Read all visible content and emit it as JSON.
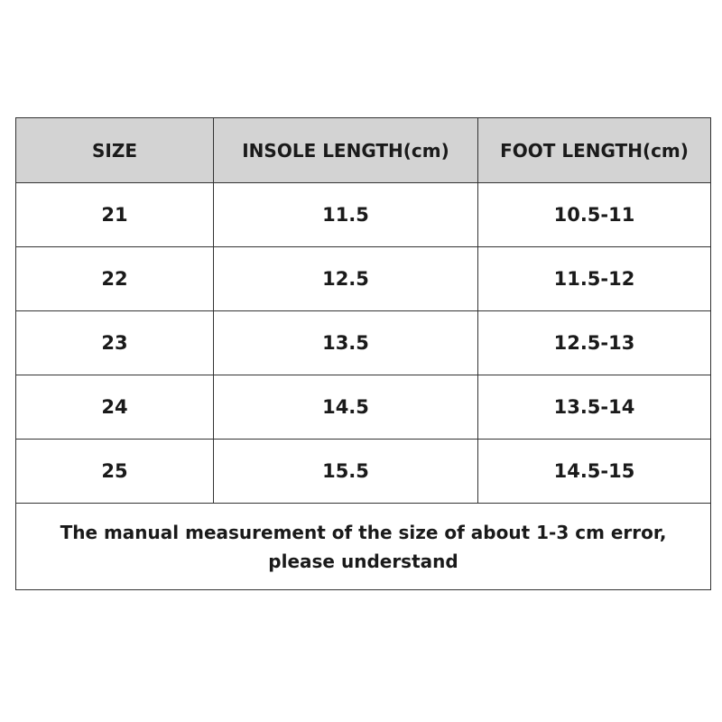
{
  "table": {
    "header": [
      "SIZE",
      "INSOLE LENGTH(cm)",
      "FOOT LENGTH(cm)"
    ],
    "rows": [
      [
        "21",
        "11.5",
        "10.5-11"
      ],
      [
        "22",
        "12.5",
        "11.5-12"
      ],
      [
        "23",
        "13.5",
        "12.5-13"
      ],
      [
        "24",
        "14.5",
        "13.5-14"
      ],
      [
        "25",
        "15.5",
        "14.5-15"
      ]
    ],
    "note": [
      "The manual measurement of the size of about 1-3 cm error,",
      "please understand"
    ]
  }
}
